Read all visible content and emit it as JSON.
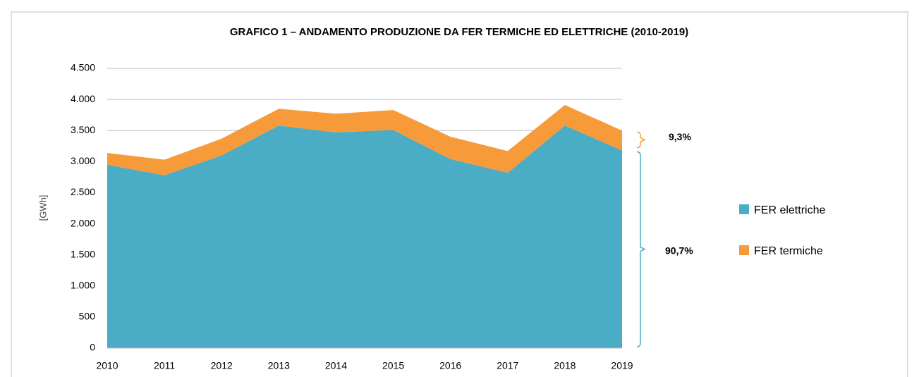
{
  "chart_data": {
    "type": "stacked_area",
    "title": "GRAFICO 1 – ANDAMENTO PRODUZIONE DA FER TERMICHE ED ELETTRICHE (2010-2019)",
    "y_label": "[GWh]",
    "categories": [
      "2010",
      "2011",
      "2012",
      "2013",
      "2014",
      "2015",
      "2016",
      "2017",
      "2018",
      "2019"
    ],
    "series": [
      {
        "name": "FER elettriche",
        "color": "#4bacc6",
        "values": [
          2950,
          2780,
          3100,
          3580,
          3470,
          3510,
          3040,
          2820,
          3580,
          3180
        ]
      },
      {
        "name": "FER termiche",
        "color": "#f79a3a",
        "values": [
          190,
          250,
          270,
          270,
          300,
          320,
          360,
          350,
          330,
          320
        ]
      }
    ],
    "annotations": [
      "9,3%",
      "90,7%"
    ],
    "ylim": [
      0,
      4500
    ],
    "yticks": [
      0,
      500,
      {
        "value": 1000,
        "label": "1.000"
      },
      {
        "value": 1500,
        "label": "1.500"
      },
      {
        "value": 2000,
        "label": "2.000"
      },
      {
        "value": 2500,
        "label": "2.500"
      },
      {
        "value": 3000,
        "label": "3.000"
      },
      {
        "value": 3500,
        "label": "3.500"
      },
      {
        "value": 4000,
        "label": "4.000"
      },
      {
        "value": 4500,
        "label": "4.500"
      }
    ],
    "grid": true,
    "legend": "right"
  }
}
